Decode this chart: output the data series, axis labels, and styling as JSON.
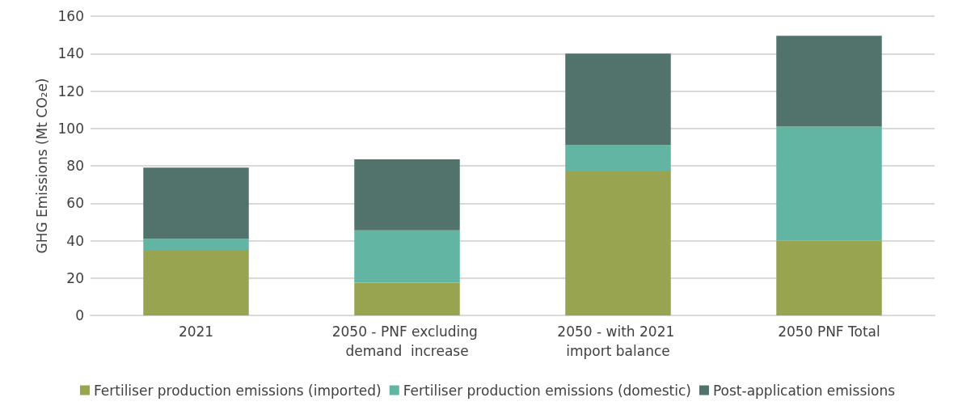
{
  "chart_data": {
    "type": "bar",
    "stacked": true,
    "ylabel": "GHG Emissions (Mt CO₂e)",
    "categories": [
      "2021",
      "2050 - PNF excluding demand  increase",
      "2050 - with 2021 import balance",
      "2050 PNF Total"
    ],
    "series": [
      {
        "name": "Fertiliser production emissions (imported)",
        "color": "#98a44f",
        "values": [
          35,
          17.5,
          77,
          40
        ]
      },
      {
        "name": "Fertiliser production emissions (domestic)",
        "color": "#62b5a3",
        "values": [
          6,
          28,
          14,
          61
        ]
      },
      {
        "name": "Post-application emissions",
        "color": "#52736c",
        "values": [
          38,
          38,
          49,
          48.5
        ]
      }
    ],
    "ylim": [
      0,
      160
    ],
    "yticks": [
      0,
      20,
      40,
      60,
      80,
      100,
      120,
      140,
      160
    ],
    "grid": "y",
    "legend": "bottom"
  }
}
